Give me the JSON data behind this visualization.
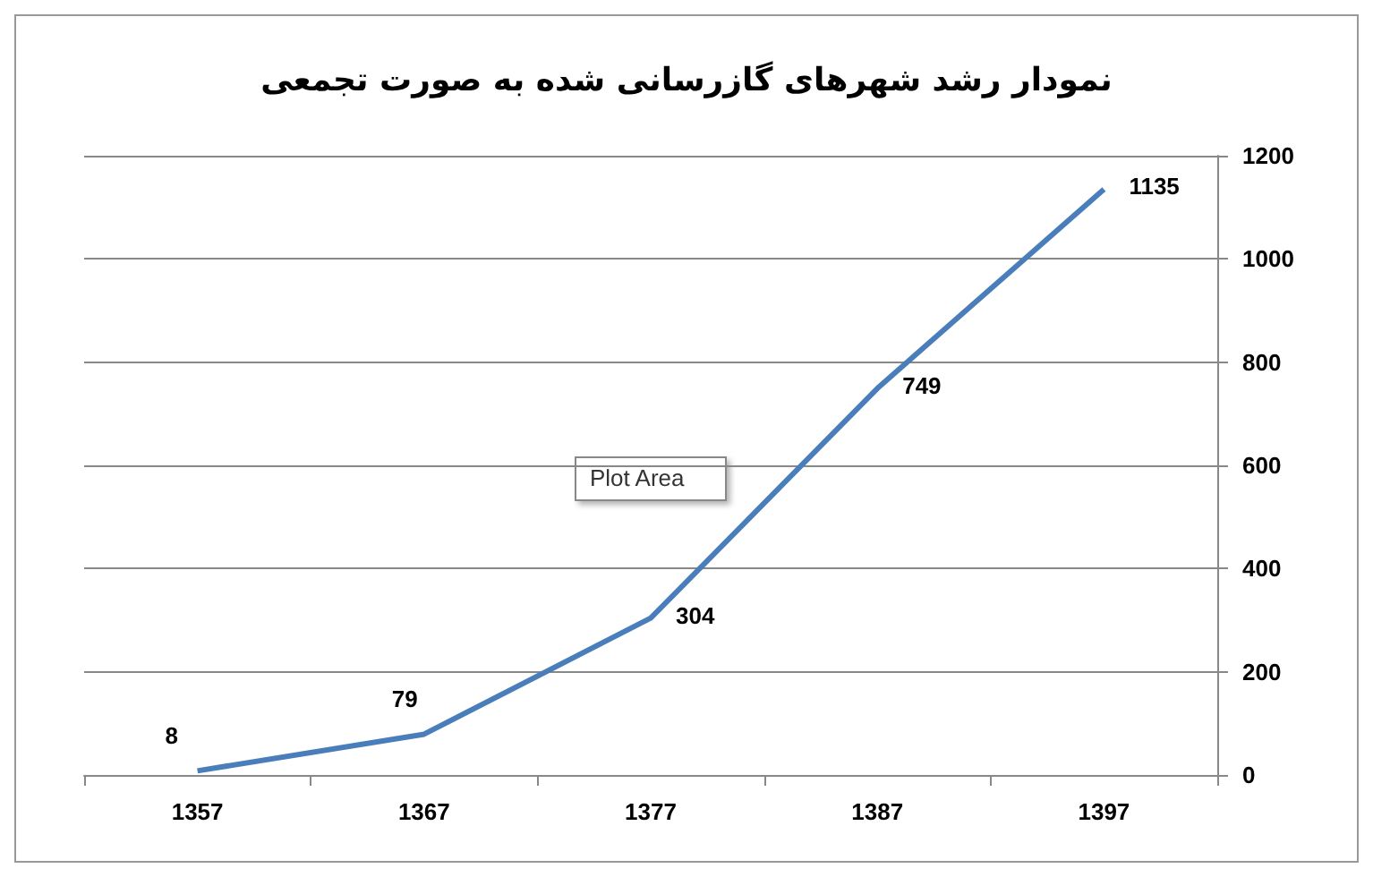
{
  "chart_data": {
    "type": "line",
    "title": "نمودار رشد شهرهای گازرسانی شده به صورت تجمعی",
    "categories": [
      "1357",
      "1367",
      "1377",
      "1387",
      "1397"
    ],
    "series": [
      {
        "color": "#4a7ebb",
        "values": [
          8,
          79,
          304,
          749,
          1135
        ]
      }
    ],
    "ylim": [
      0,
      1200
    ],
    "yticks": [
      0,
      200,
      400,
      600,
      800,
      1000,
      1200
    ],
    "grid": "y",
    "marker": "none",
    "line_style": "solid",
    "data_labels": true,
    "annotations": [
      "Plot Area"
    ]
  }
}
